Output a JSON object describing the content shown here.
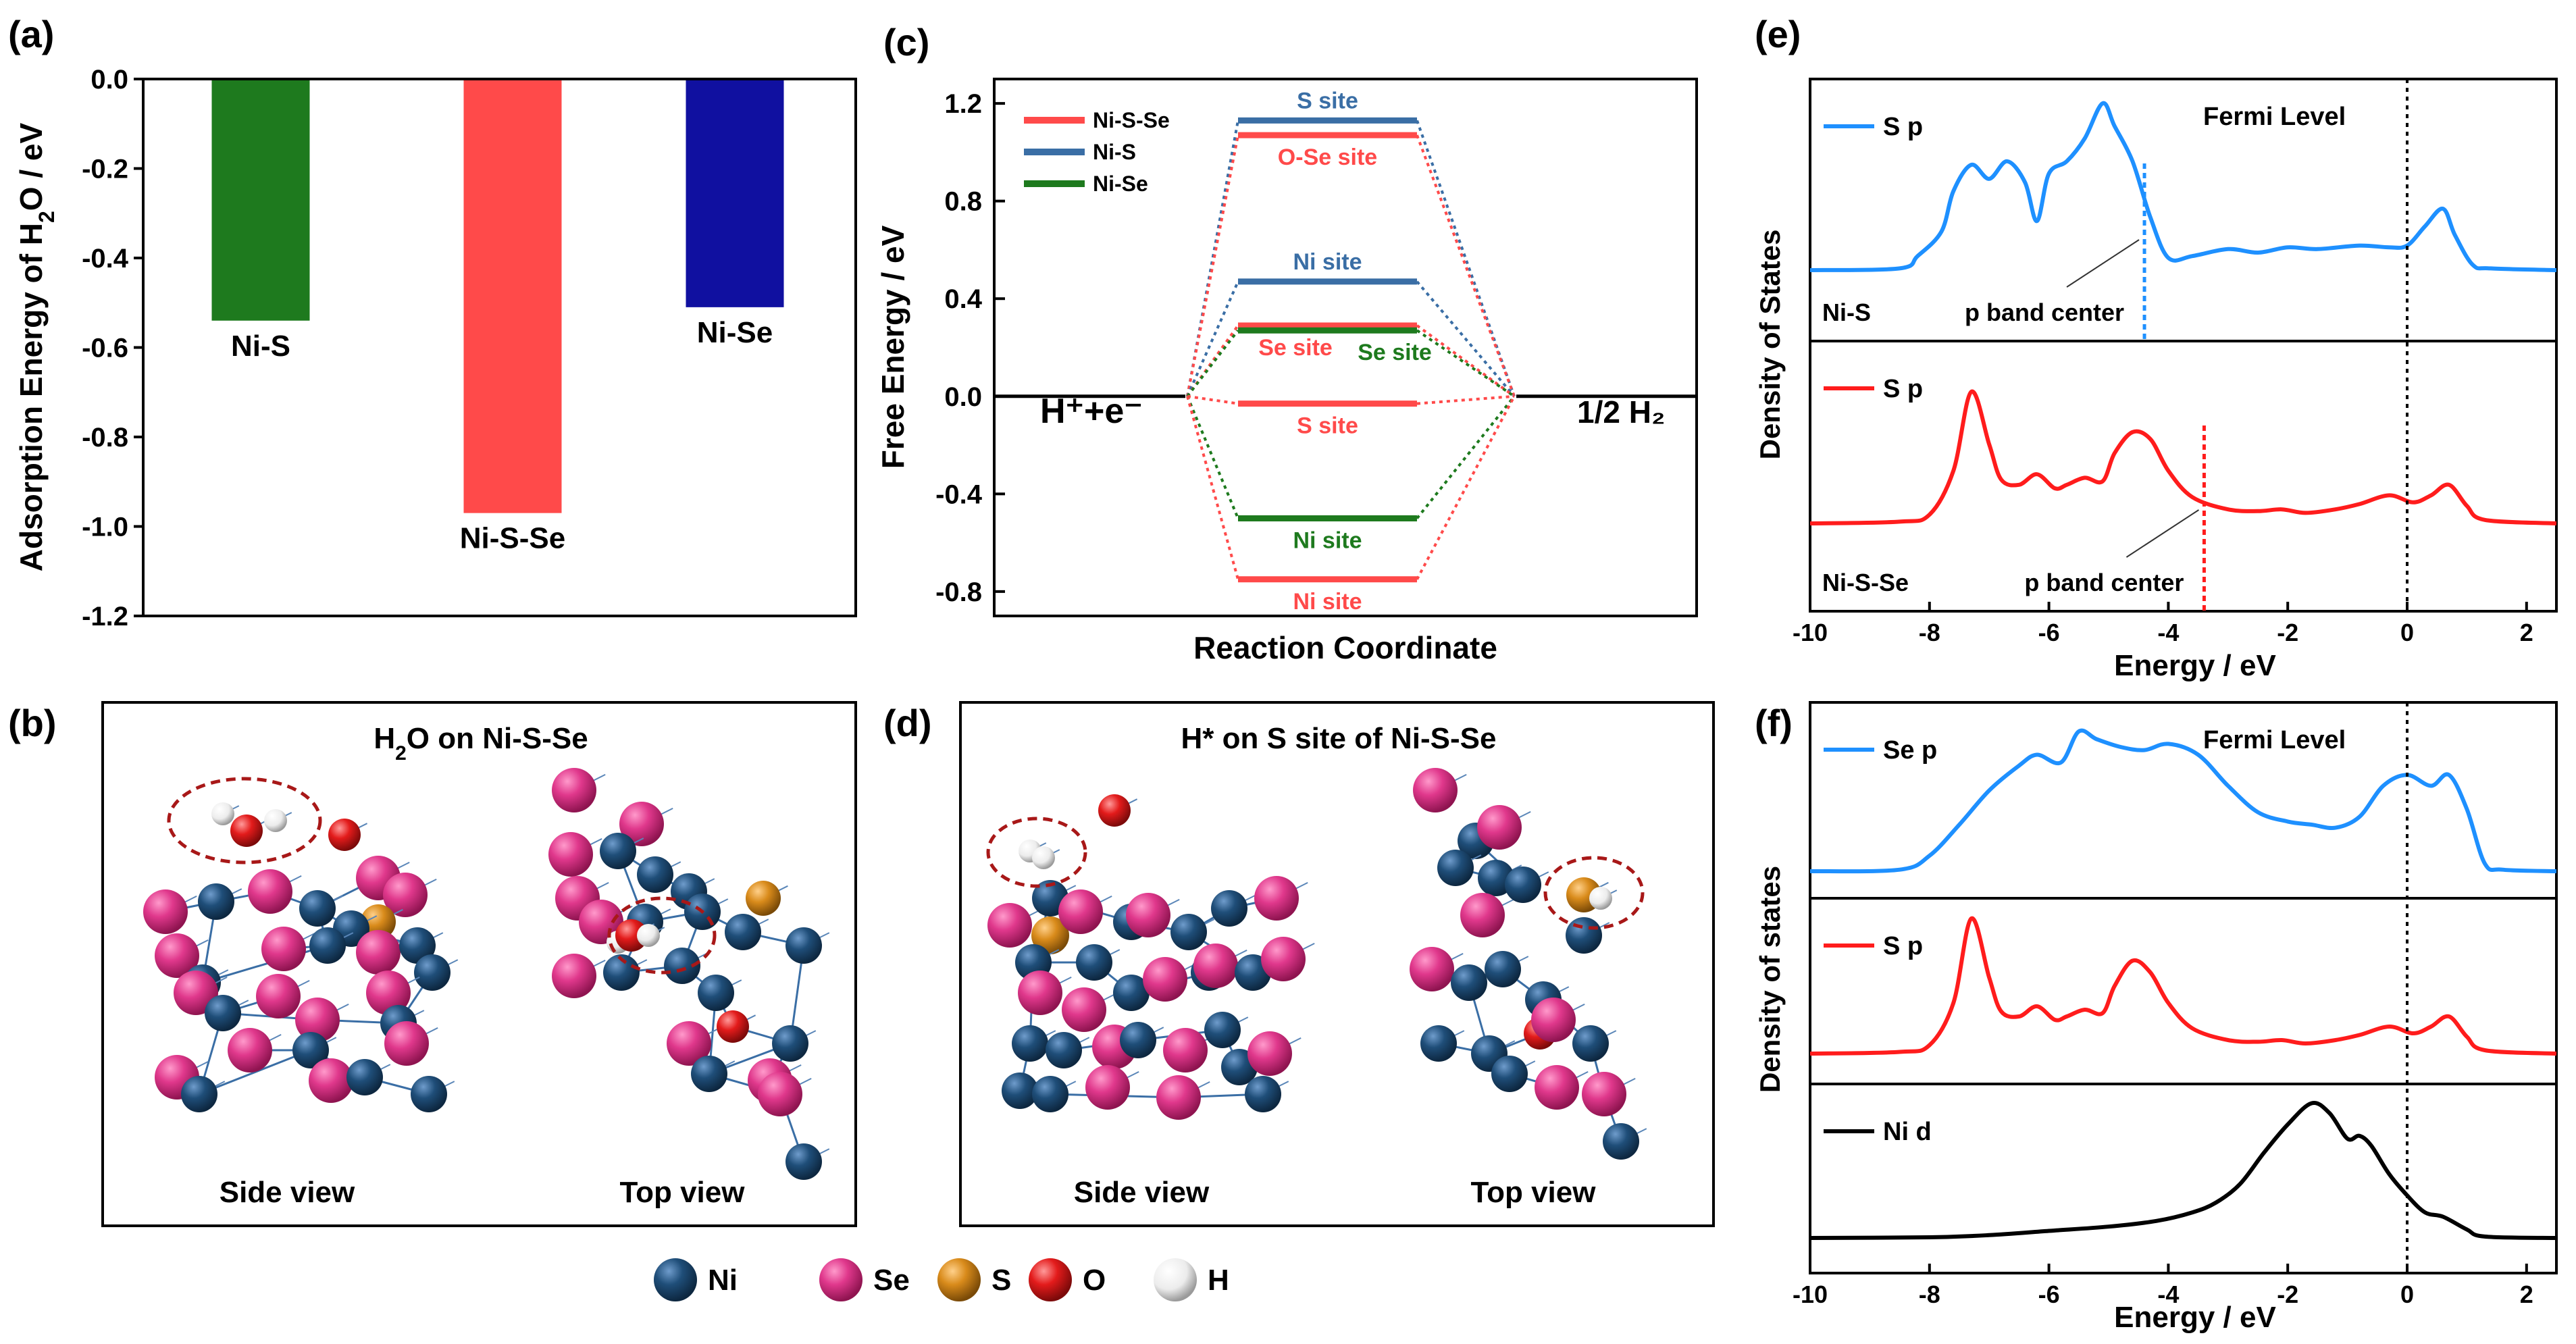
{
  "panels": {
    "a": "(a)",
    "b": "(b)",
    "c": "(c)",
    "d": "(d)",
    "e": "(e)",
    "f": "(f)"
  },
  "colors": {
    "green": "#1e7a1e",
    "red": "#ff4a4a",
    "navy": "#1010a0",
    "blue_line": "#1e90ff",
    "steel": "#3a6ea5",
    "ni_atom": "#1f4e79",
    "se_atom": "#e0388c",
    "s_atom": "#d98b1b",
    "o_atom": "#e31b1b",
    "h_atom": "#f2f2f2",
    "dash_circle": "#a81818"
  },
  "chart_data": [
    {
      "id": "a",
      "type": "bar",
      "title": "",
      "ylabel_parts": [
        "Adsorption Energy of H",
        "2",
        "O / eV"
      ],
      "categories": [
        "Ni-S",
        "Ni-S-Se",
        "Ni-Se"
      ],
      "values": [
        -0.54,
        -0.97,
        -0.51
      ],
      "colors": [
        "#1e7a1e",
        "#ff4a4a",
        "#1010a0"
      ],
      "ylim": [
        -1.2,
        0.0
      ],
      "yticks": [
        "0.0",
        "-0.2",
        "-0.4",
        "-0.6",
        "-0.8",
        "-1.0",
        "-1.2"
      ]
    },
    {
      "id": "c",
      "type": "line",
      "xlabel": "Reaction Coordinate",
      "ylabel": "Free Energy / eV",
      "ylim": [
        -0.9,
        1.3
      ],
      "yticks": [
        "1.2",
        "0.8",
        "0.4",
        "0.0",
        "-0.4",
        "-0.8"
      ],
      "start_label": "H⁺+e⁻",
      "end_label": "1/2 H₂",
      "legend": [
        {
          "name": "Ni-S-Se",
          "color": "#ff4a4a"
        },
        {
          "name": "Ni-S",
          "color": "#3a6ea5"
        },
        {
          "name": "Ni-Se",
          "color": "#1e7a1e"
        }
      ],
      "levels": [
        {
          "value": 1.13,
          "label": "S site",
          "color": "#3a6ea5",
          "label_pos": "above"
        },
        {
          "value": 1.07,
          "label": "O-Se site",
          "color": "#ff4a4a",
          "label_pos": "below"
        },
        {
          "value": 0.47,
          "label": "Ni site",
          "color": "#3a6ea5",
          "label_pos": "above"
        },
        {
          "value": 0.29,
          "label": "Se site",
          "color": "#ff4a4a",
          "label_pos": "below-left"
        },
        {
          "value": 0.27,
          "label": "Se site",
          "color": "#1e7a1e",
          "label_pos": "below-right"
        },
        {
          "value": -0.03,
          "label": "S site",
          "color": "#ff4a4a",
          "label_pos": "below"
        },
        {
          "value": -0.5,
          "label": "Ni site",
          "color": "#1e7a1e",
          "label_pos": "below"
        },
        {
          "value": -0.75,
          "label": "Ni site",
          "color": "#ff4a4a",
          "label_pos": "below"
        }
      ]
    },
    {
      "id": "e",
      "type": "line",
      "xlabel": "Energy / eV",
      "ylabel": "Density of States",
      "xlim": [
        -10,
        2.5
      ],
      "xticks": [
        "-10",
        "-8",
        "-6",
        "-4",
        "-2",
        "0",
        "2"
      ],
      "fermi_label": "Fermi Level",
      "panels": [
        {
          "name": "Ni-S",
          "legend": "S p",
          "color": "#1e90ff",
          "band_center": -4.4,
          "band_center_label": "p band center",
          "x": [
            -10,
            -8.5,
            -8.2,
            -7.8,
            -7.6,
            -7.3,
            -7.0,
            -6.7,
            -6.4,
            -6.2,
            -6.0,
            -5.7,
            -5.4,
            -5.1,
            -4.9,
            -4.6,
            -4.3,
            -4.0,
            -3.6,
            -3.0,
            -2.5,
            -2.0,
            -1.5,
            -0.8,
            -0.3,
            0.0,
            0.3,
            0.6,
            0.8,
            1.1,
            1.4,
            2.5
          ],
          "y": [
            0.0,
            0.01,
            0.08,
            0.22,
            0.45,
            0.6,
            0.52,
            0.62,
            0.5,
            0.28,
            0.55,
            0.62,
            0.75,
            0.95,
            0.82,
            0.62,
            0.3,
            0.07,
            0.08,
            0.12,
            0.1,
            0.13,
            0.12,
            0.14,
            0.13,
            0.14,
            0.25,
            0.35,
            0.2,
            0.03,
            0.01,
            0.0
          ]
        },
        {
          "name": "Ni-S-Se",
          "legend": "S p",
          "color": "#ff1c1c",
          "band_center": -3.4,
          "band_center_label": "p band center",
          "x": [
            -10,
            -8.5,
            -8.0,
            -7.6,
            -7.3,
            -7.0,
            -6.8,
            -6.5,
            -6.2,
            -5.9,
            -5.7,
            -5.4,
            -5.1,
            -4.9,
            -4.6,
            -4.3,
            -4.0,
            -3.6,
            -3.0,
            -2.5,
            -2.1,
            -1.7,
            -1.2,
            -0.8,
            -0.3,
            0.1,
            0.4,
            0.7,
            1.0,
            1.3,
            2.5
          ],
          "y": [
            0.0,
            0.01,
            0.05,
            0.3,
            0.75,
            0.45,
            0.25,
            0.22,
            0.28,
            0.2,
            0.22,
            0.26,
            0.24,
            0.4,
            0.52,
            0.48,
            0.3,
            0.15,
            0.08,
            0.07,
            0.08,
            0.06,
            0.08,
            0.11,
            0.16,
            0.12,
            0.16,
            0.22,
            0.1,
            0.02,
            0.0
          ]
        }
      ]
    },
    {
      "id": "f",
      "type": "line",
      "xlabel": "Energy / eV",
      "ylabel": "Density of states",
      "xlim": [
        -10,
        2.5
      ],
      "xticks": [
        "-10",
        "-8",
        "-6",
        "-4",
        "-2",
        "0",
        "2"
      ],
      "fermi_label": "Fermi Level",
      "panels": [
        {
          "legend": "Se p",
          "color": "#1e90ff",
          "x": [
            -10,
            -8.5,
            -8.0,
            -7.5,
            -7.0,
            -6.5,
            -6.2,
            -5.8,
            -5.5,
            -5.2,
            -4.8,
            -4.4,
            -4.0,
            -3.5,
            -3.0,
            -2.5,
            -2.0,
            -1.6,
            -1.2,
            -0.8,
            -0.4,
            0.0,
            0.4,
            0.7,
            1.0,
            1.3,
            1.6,
            2.5
          ],
          "y": [
            0.0,
            0.01,
            0.1,
            0.3,
            0.52,
            0.68,
            0.75,
            0.7,
            0.9,
            0.85,
            0.8,
            0.78,
            0.82,
            0.75,
            0.55,
            0.38,
            0.32,
            0.3,
            0.28,
            0.35,
            0.55,
            0.62,
            0.55,
            0.62,
            0.4,
            0.05,
            0.01,
            0.0
          ]
        },
        {
          "legend": "S p",
          "color": "#ff1c1c",
          "x": [
            -10,
            -8.5,
            -8.0,
            -7.6,
            -7.3,
            -7.0,
            -6.8,
            -6.5,
            -6.2,
            -5.9,
            -5.7,
            -5.4,
            -5.1,
            -4.9,
            -4.6,
            -4.3,
            -4.0,
            -3.6,
            -3.0,
            -2.5,
            -2.1,
            -1.7,
            -1.2,
            -0.8,
            -0.3,
            0.1,
            0.4,
            0.7,
            1.0,
            1.3,
            2.5
          ],
          "y": [
            0.0,
            0.01,
            0.05,
            0.3,
            0.8,
            0.45,
            0.25,
            0.22,
            0.28,
            0.2,
            0.22,
            0.26,
            0.24,
            0.4,
            0.55,
            0.48,
            0.3,
            0.15,
            0.08,
            0.07,
            0.08,
            0.06,
            0.08,
            0.11,
            0.16,
            0.12,
            0.16,
            0.22,
            0.1,
            0.02,
            0.0
          ]
        },
        {
          "legend": "Ni d",
          "color": "#000000",
          "x": [
            -10,
            -8.0,
            -7.0,
            -6.0,
            -5.0,
            -4.2,
            -3.6,
            -3.2,
            -2.8,
            -2.4,
            -2.0,
            -1.6,
            -1.3,
            -1.0,
            -0.8,
            -0.6,
            -0.3,
            0.0,
            0.3,
            0.6,
            1.0,
            1.3,
            2.5
          ],
          "y": [
            0.0,
            0.005,
            0.02,
            0.05,
            0.08,
            0.12,
            0.18,
            0.25,
            0.38,
            0.6,
            0.8,
            0.95,
            0.88,
            0.7,
            0.72,
            0.65,
            0.45,
            0.3,
            0.18,
            0.15,
            0.06,
            0.01,
            0.0
          ]
        }
      ]
    }
  ],
  "structures": {
    "b": {
      "title_parts": [
        "H",
        "2",
        "O on Ni-S-Se"
      ],
      "side": "Side view",
      "top": "Top view"
    },
    "d": {
      "title": "H* on S site of Ni-S-Se",
      "side": "Side view",
      "top": "Top view"
    }
  },
  "legend_atoms": [
    {
      "label": "Ni",
      "color": "#1f4e79"
    },
    {
      "label": "Se",
      "color": "#e0388c"
    },
    {
      "label": "S",
      "color": "#d98b1b"
    },
    {
      "label": "O",
      "color": "#e31b1b"
    },
    {
      "label": "H",
      "color": "#f2f2f2"
    }
  ]
}
